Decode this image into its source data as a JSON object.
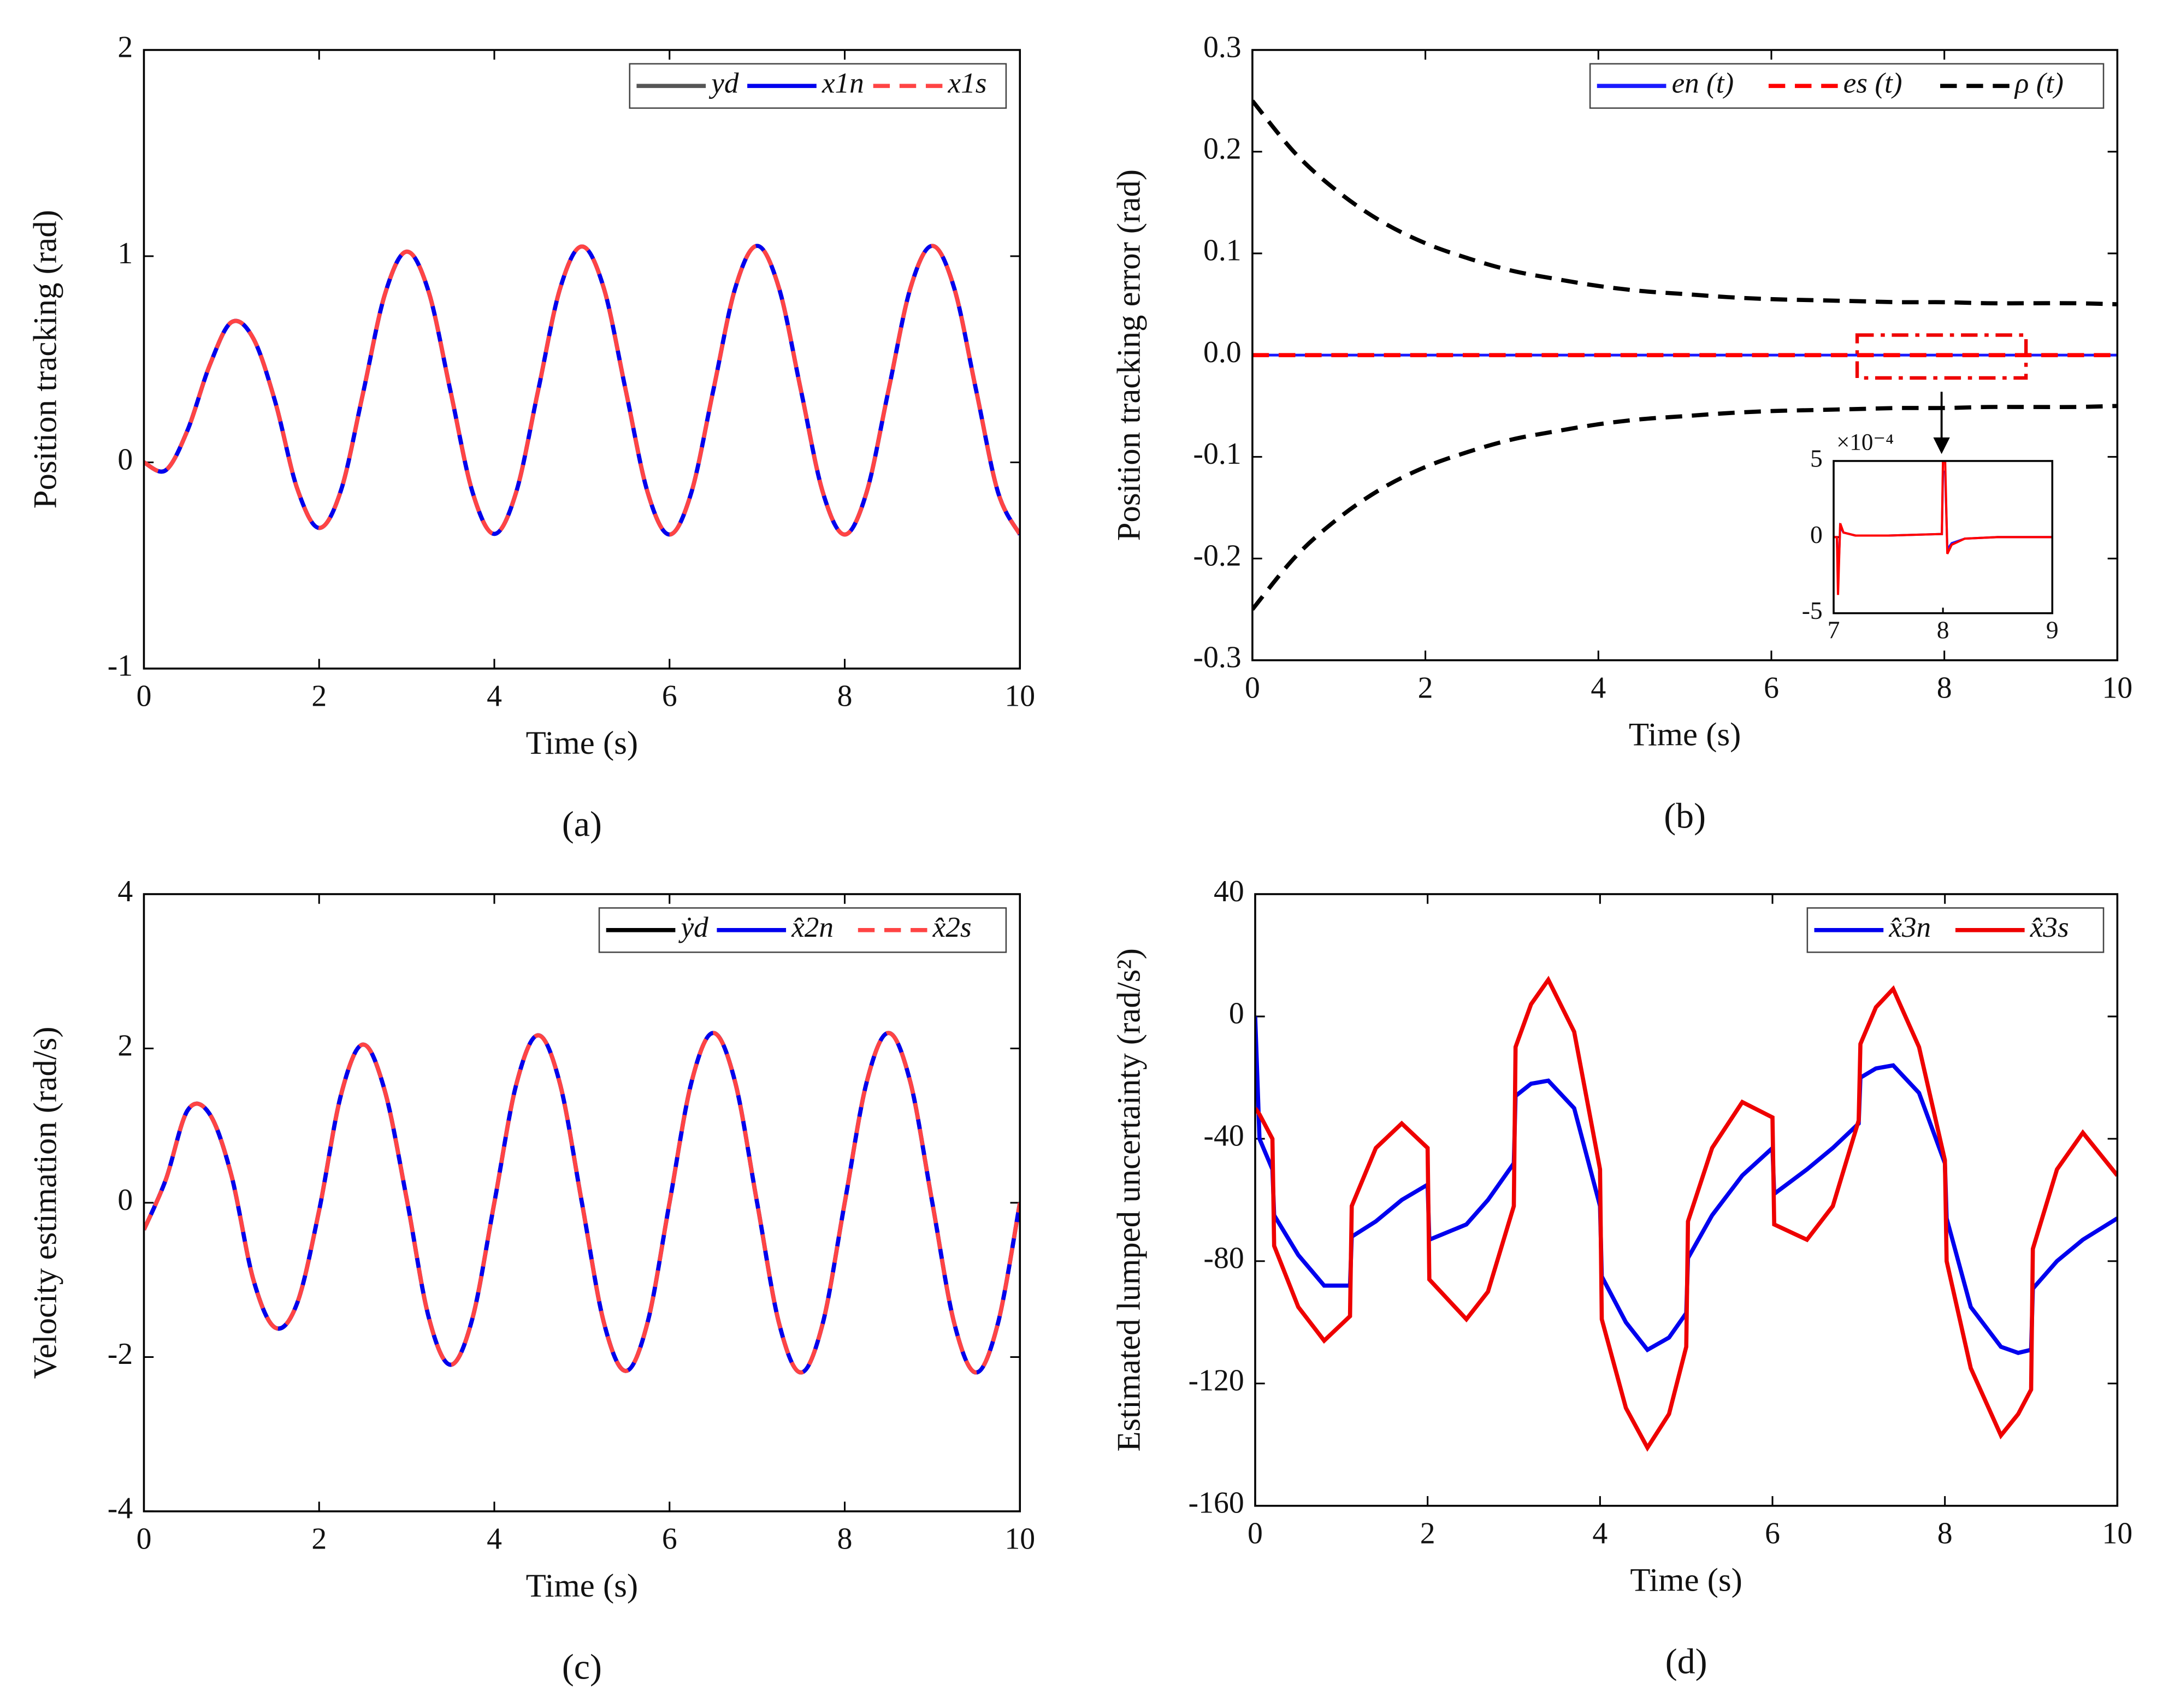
{
  "chart_data": [
    {
      "type": "line",
      "caption": "(a)",
      "xlabel": "Time (s)",
      "ylabel": "Position tracking (rad)",
      "xlim": [
        0,
        10
      ],
      "xticks": [
        0,
        2,
        4,
        6,
        8,
        10
      ],
      "ylim": [
        -1,
        2
      ],
      "yticks": [
        -1,
        0,
        1,
        2
      ],
      "legend": "upper right",
      "x": [
        0,
        0.25,
        0.5,
        0.75,
        1,
        1.25,
        1.5,
        1.75,
        2,
        2.25,
        2.5,
        2.75,
        3,
        3.25,
        3.5,
        3.75,
        4,
        4.25,
        4.5,
        4.75,
        5,
        5.25,
        5.5,
        5.75,
        6,
        6.25,
        6.5,
        6.75,
        7,
        7.25,
        7.5,
        7.75,
        8,
        8.25,
        8.5,
        8.75,
        9,
        9.25,
        9.5,
        9.75,
        10
      ],
      "series": [
        {
          "name": "yd",
          "color": "#555555",
          "style": "solid",
          "values": [
            0,
            -0.038,
            0.158,
            0.47,
            0.68,
            0.6,
            0.292,
            -0.127,
            -0.318,
            -0.135,
            0.333,
            0.814,
            1.022,
            0.828,
            0.345,
            -0.143,
            -0.347,
            -0.144,
            0.348,
            0.842,
            1.047,
            0.845,
            0.35,
            -0.145,
            -0.35,
            -0.145,
            0.35,
            0.845,
            1.05,
            0.845,
            0.35,
            -0.145,
            -0.35,
            -0.145,
            0.35,
            0.845,
            1.05,
            0.845,
            0.35,
            -0.145,
            -0.35
          ]
        },
        {
          "name": "x1n",
          "color": "#0000ee",
          "style": "solid",
          "values": [
            0,
            -0.038,
            0.158,
            0.47,
            0.68,
            0.6,
            0.292,
            -0.127,
            -0.318,
            -0.135,
            0.333,
            0.814,
            1.022,
            0.828,
            0.345,
            -0.143,
            -0.347,
            -0.144,
            0.348,
            0.842,
            1.047,
            0.845,
            0.35,
            -0.145,
            -0.35,
            -0.145,
            0.35,
            0.845,
            1.05,
            0.845,
            0.35,
            -0.145,
            -0.35,
            -0.145,
            0.35,
            0.845,
            1.05,
            0.845,
            0.35,
            -0.145,
            -0.35
          ]
        },
        {
          "name": "x1s",
          "color": "#ff4444",
          "style": "dashed",
          "values": [
            0,
            -0.038,
            0.158,
            0.47,
            0.68,
            0.6,
            0.292,
            -0.127,
            -0.318,
            -0.135,
            0.333,
            0.814,
            1.022,
            0.828,
            0.345,
            -0.143,
            -0.347,
            -0.144,
            0.348,
            0.842,
            1.047,
            0.845,
            0.35,
            -0.145,
            -0.35,
            -0.145,
            0.35,
            0.845,
            1.05,
            0.845,
            0.35,
            -0.145,
            -0.35,
            -0.145,
            0.35,
            0.845,
            1.05,
            0.845,
            0.35,
            -0.145,
            -0.35
          ]
        }
      ]
    },
    {
      "type": "line",
      "caption": "(b)",
      "xlabel": "Time (s)",
      "ylabel": "Position tracking error (rad)",
      "xlim": [
        0,
        10
      ],
      "xticks": [
        0,
        2,
        4,
        6,
        8,
        10
      ],
      "ylim": [
        -0.3,
        0.3
      ],
      "yticks": [
        -0.3,
        -0.2,
        -0.1,
        {
          "value": 0,
          "label": "0.0"
        },
        0.1,
        0.2,
        0.3
      ],
      "legend": "upper right",
      "x": [
        0,
        0.5,
        1,
        1.5,
        2,
        2.5,
        3,
        3.5,
        4,
        4.5,
        5,
        5.5,
        6,
        6.5,
        7,
        7.5,
        8,
        8.5,
        9,
        9.5,
        10
      ],
      "series": [
        {
          "name": "en (t)",
          "color": "#1a1aff",
          "style": "solid",
          "values": [
            0,
            0,
            0,
            0,
            0,
            0,
            0,
            0,
            0,
            0,
            0,
            0,
            0,
            0,
            0,
            0,
            0,
            0,
            0,
            0,
            0
          ]
        },
        {
          "name": "es (t)",
          "color": "#ff0000",
          "style": "dashed",
          "values": [
            0,
            0,
            0,
            0,
            0,
            0,
            0,
            0,
            0,
            0,
            0,
            0,
            0,
            0,
            0,
            0,
            0,
            0,
            0,
            0,
            0
          ]
        },
        {
          "name": "ρ (t)",
          "color": "#000000",
          "style": "dashed",
          "values": [
            0.25,
            0.198,
            0.16,
            0.131,
            0.11,
            0.095,
            0.083,
            0.075,
            0.068,
            0.063,
            0.06,
            0.057,
            0.055,
            0.054,
            0.053,
            0.052,
            0.052,
            0.051,
            0.051,
            0.051,
            0.05
          ],
          "lower_values": [
            -0.25,
            -0.198,
            -0.16,
            -0.131,
            -0.11,
            -0.095,
            -0.083,
            -0.075,
            -0.068,
            -0.063,
            -0.06,
            -0.057,
            -0.055,
            -0.054,
            -0.053,
            -0.052,
            -0.052,
            -0.051,
            -0.051,
            -0.051,
            -0.05
          ]
        }
      ]
    },
    {
      "type": "line",
      "caption": "(c)",
      "xlabel": "Time (s)",
      "ylabel": "Velocity estimation (rad/s)",
      "xlim": [
        0,
        10
      ],
      "xticks": [
        0,
        2,
        4,
        6,
        8,
        10
      ],
      "ylim": [
        -4,
        4
      ],
      "yticks": [
        -4,
        -2,
        0,
        2,
        4
      ],
      "legend": "upper right",
      "x": [
        0,
        0.25,
        0.5,
        0.75,
        1,
        1.25,
        1.5,
        1.75,
        2,
        2.25,
        2.5,
        2.75,
        3,
        3.25,
        3.5,
        3.75,
        4,
        4.25,
        4.5,
        4.75,
        5,
        5.25,
        5.5,
        5.75,
        6,
        6.25,
        6.5,
        6.75,
        7,
        7.25,
        7.5,
        7.75,
        8,
        8.25,
        8.5,
        8.75,
        9,
        9.25,
        9.5,
        9.75,
        10
      ],
      "series": [
        {
          "name": "ẏd",
          "color": "#000000",
          "style": "solid",
          "values": [
            -0.35,
            0.3,
            1.2,
            1.15,
            0.35,
            -1.0,
            -1.62,
            -1.3,
            -0.1,
            1.4,
            2.05,
            1.45,
            0.05,
            -1.48,
            -2.1,
            -1.5,
            0,
            1.53,
            2.17,
            1.54,
            0,
            -1.55,
            -2.18,
            -1.55,
            0,
            1.56,
            2.2,
            1.56,
            0,
            -1.56,
            -2.2,
            -1.56,
            0,
            1.56,
            2.2,
            1.56,
            0,
            -1.56,
            -2.2,
            -1.56,
            0
          ]
        },
        {
          "name": "x̂2n",
          "color": "#0000ee",
          "style": "solid",
          "values": [
            -0.35,
            0.3,
            1.2,
            1.15,
            0.35,
            -1.0,
            -1.62,
            -1.3,
            -0.1,
            1.4,
            2.05,
            1.45,
            0.05,
            -1.48,
            -2.1,
            -1.5,
            0,
            1.53,
            2.17,
            1.54,
            0,
            -1.55,
            -2.18,
            -1.55,
            0,
            1.56,
            2.2,
            1.56,
            0,
            -1.56,
            -2.2,
            -1.56,
            0,
            1.56,
            2.2,
            1.56,
            0,
            -1.56,
            -2.2,
            -1.56,
            0
          ]
        },
        {
          "name": "x̂2s",
          "color": "#ff4444",
          "style": "dashed",
          "values": [
            -0.35,
            0.3,
            1.2,
            1.15,
            0.35,
            -1.0,
            -1.62,
            -1.3,
            -0.1,
            1.4,
            2.05,
            1.45,
            0.05,
            -1.48,
            -2.1,
            -1.5,
            0,
            1.53,
            2.17,
            1.54,
            0,
            -1.55,
            -2.18,
            -1.55,
            0,
            1.56,
            2.2,
            1.56,
            0,
            -1.56,
            -2.2,
            -1.56,
            0,
            1.56,
            2.2,
            1.56,
            0,
            -1.56,
            -2.2,
            -1.56,
            0
          ]
        }
      ]
    },
    {
      "type": "line",
      "caption": "(d)",
      "xlabel": "Time (s)",
      "ylabel": "Estimated lumped uncertainty (rad/s²)",
      "xlim": [
        0,
        10
      ],
      "xticks": [
        0,
        2,
        4,
        6,
        8,
        10
      ],
      "ylim": [
        -160,
        40
      ],
      "yticks": [
        -160,
        -120,
        -80,
        -40,
        0,
        40
      ],
      "legend": "upper right",
      "x": [
        0,
        0.05,
        0.2,
        0.22,
        0.5,
        0.8,
        1.1,
        1.12,
        1.4,
        1.7,
        2.0,
        2.02,
        2.45,
        2.7,
        3.0,
        3.02,
        3.2,
        3.4,
        3.7,
        4.0,
        4.02,
        4.3,
        4.55,
        4.8,
        5.0,
        5.02,
        5.3,
        5.65,
        6.0,
        6.02,
        6.4,
        6.7,
        7.0,
        7.02,
        7.2,
        7.4,
        7.7,
        8.0,
        8.02,
        8.3,
        8.65,
        8.85,
        9.0,
        9.02,
        9.3,
        9.6,
        10
      ],
      "series": [
        {
          "name": "x̂3n",
          "color": "#0000ee",
          "style": "solid",
          "values": [
            0,
            -40,
            -50,
            -65,
            -78,
            -88,
            -88,
            -72,
            -67,
            -60,
            -55,
            -73,
            -68,
            -60,
            -48,
            -26,
            -22,
            -21,
            -30,
            -62,
            -85,
            -100,
            -109,
            -105,
            -97,
            -79,
            -65,
            -52,
            -43,
            -58,
            -50,
            -43,
            -35,
            -20,
            -17,
            -16,
            -25,
            -48,
            -66,
            -95,
            -108,
            -110,
            -109,
            -89,
            -80,
            -73,
            -66
          ]
        },
        {
          "name": "x̂3s",
          "color": "#ee0000",
          "style": "solid",
          "values": [
            -30,
            -32,
            -40,
            -75,
            -95,
            -106,
            -98,
            -62,
            -43,
            -35,
            -43,
            -86,
            -99,
            -90,
            -62,
            -10,
            4,
            12,
            -5,
            -50,
            -99,
            -128,
            -141,
            -130,
            -108,
            -67,
            -43,
            -28,
            -33,
            -68,
            -73,
            -62,
            -34,
            -9,
            3,
            9,
            -10,
            -47,
            -80,
            -115,
            -137,
            -130,
            -122,
            -76,
            -50,
            -38,
            -52
          ]
        }
      ]
    },
    {
      "type": "line",
      "multiplier": "×10⁻⁴",
      "xlim": [
        7,
        9
      ],
      "xticks": [
        7,
        8,
        9
      ],
      "ylim": [
        -5,
        5
      ],
      "yticks": [
        -5,
        0,
        5
      ],
      "x": [
        7,
        7.03,
        7.04,
        7.06,
        7.09,
        7.2,
        7.5,
        7.97,
        7.99,
        8.0,
        8.02,
        8.04,
        8.08,
        8.2,
        8.5,
        9
      ],
      "series": [
        {
          "name": "en (t)",
          "color": "#1a1aff",
          "style": "solid",
          "values": [
            0,
            0,
            -3,
            0.7,
            0.3,
            0.1,
            0.1,
            0.2,
            0.2,
            4.3,
            4.3,
            -0.8,
            -0.4,
            -0.1,
            0,
            0
          ]
        },
        {
          "name": "es (t)",
          "color": "#ff0000",
          "style": "solid",
          "values": [
            0,
            0,
            -3.8,
            0.9,
            0.3,
            0.1,
            0.1,
            0.2,
            0.2,
            5,
            5,
            -1.1,
            -0.5,
            -0.1,
            0,
            0
          ]
        }
      ]
    }
  ]
}
